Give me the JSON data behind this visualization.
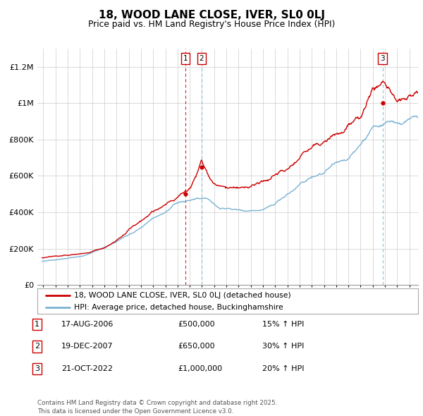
{
  "title": "18, WOOD LANE CLOSE, IVER, SL0 0LJ",
  "subtitle": "Price paid vs. HM Land Registry's House Price Index (HPI)",
  "hpi_color": "#7ab3d4",
  "price_color": "#cc0000",
  "background_color": "#ffffff",
  "grid_color": "#cccccc",
  "ylim": [
    0,
    1300000
  ],
  "yticks": [
    0,
    200000,
    400000,
    600000,
    800000,
    1000000,
    1200000
  ],
  "ytick_labels": [
    "£0",
    "£200K",
    "£400K",
    "£600K",
    "£800K",
    "£1M",
    "£1.2M"
  ],
  "xlim_start": 1994.5,
  "xlim_end": 2025.7,
  "xticks": [
    1995,
    1996,
    1997,
    1998,
    1999,
    2000,
    2001,
    2002,
    2003,
    2004,
    2005,
    2006,
    2007,
    2008,
    2009,
    2010,
    2011,
    2012,
    2013,
    2014,
    2015,
    2016,
    2017,
    2018,
    2019,
    2020,
    2021,
    2022,
    2023,
    2024,
    2025
  ],
  "sale_markers": [
    {
      "year": 2006.63,
      "price": 500000,
      "label": "1"
    },
    {
      "year": 2007.97,
      "price": 650000,
      "label": "2"
    },
    {
      "year": 2022.8,
      "price": 1000000,
      "label": "3"
    }
  ],
  "legend_entries": [
    {
      "color": "#cc0000",
      "label": "18, WOOD LANE CLOSE, IVER, SL0 0LJ (detached house)"
    },
    {
      "color": "#7ab3d4",
      "label": "HPI: Average price, detached house, Buckinghamshire"
    }
  ],
  "table_rows": [
    {
      "num": "1",
      "date": "17-AUG-2006",
      "price": "£500,000",
      "change": "15% ↑ HPI"
    },
    {
      "num": "2",
      "date": "19-DEC-2007",
      "price": "£650,000",
      "change": "30% ↑ HPI"
    },
    {
      "num": "3",
      "date": "21-OCT-2022",
      "price": "£1,000,000",
      "change": "20% ↑ HPI"
    }
  ],
  "footer": "Contains HM Land Registry data © Crown copyright and database right 2025.\nThis data is licensed under the Open Government Licence v3.0.",
  "dashed_line_colors": [
    "#cc0000",
    "#7ab3d4",
    "#7ab3d4"
  ]
}
